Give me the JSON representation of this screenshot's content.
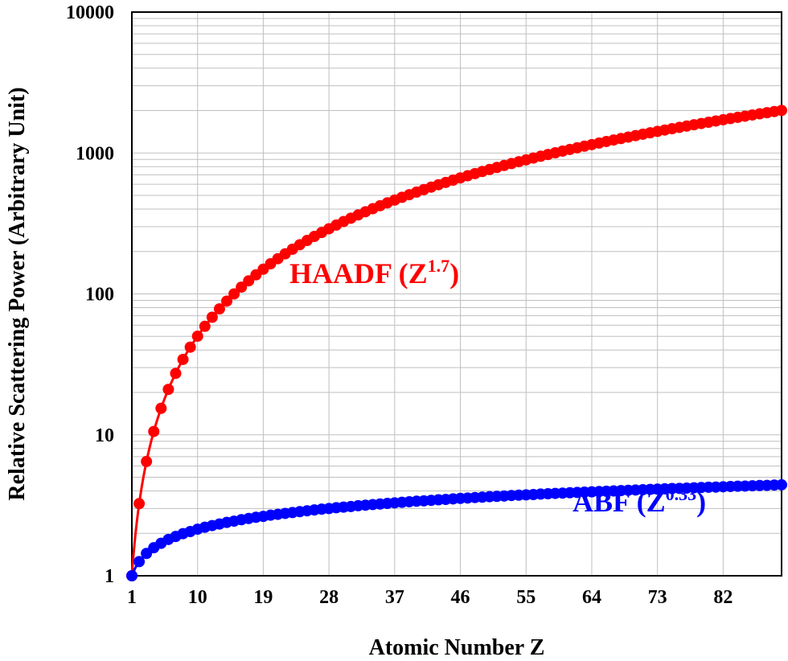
{
  "chart_data": {
    "type": "scatter",
    "xlabel": "Atomic Number Z",
    "ylabel": "Relative Scattering Power (Arbitrary Unit)",
    "yscale": "log",
    "xlim": [
      1,
      90
    ],
    "ylim": [
      1,
      10000
    ],
    "x_ticks": [
      1,
      10,
      19,
      28,
      37,
      46,
      55,
      64,
      73,
      82
    ],
    "y_ticks": [
      1,
      10,
      100,
      1000,
      10000
    ],
    "grid": true,
    "x": [
      1,
      2,
      3,
      4,
      5,
      6,
      7,
      8,
      9,
      10,
      11,
      12,
      13,
      14,
      15,
      16,
      17,
      18,
      19,
      20,
      21,
      22,
      23,
      24,
      25,
      26,
      27,
      28,
      29,
      30,
      31,
      32,
      33,
      34,
      35,
      36,
      37,
      38,
      39,
      40,
      41,
      42,
      43,
      44,
      45,
      46,
      47,
      48,
      49,
      50,
      51,
      52,
      53,
      54,
      55,
      56,
      57,
      58,
      59,
      60,
      61,
      62,
      63,
      64,
      65,
      66,
      67,
      68,
      69,
      70,
      71,
      72,
      73,
      74,
      75,
      76,
      77,
      78,
      79,
      80,
      81,
      82,
      83,
      84,
      85,
      86,
      87,
      88,
      89,
      90
    ],
    "series": [
      {
        "name": "HAADF",
        "label_main": "HAADF (Z",
        "label_sup": "1.7",
        "label_end": ")",
        "color": "#ff0000",
        "exponent": 1.7,
        "values": [
          1,
          3.25,
          6.47,
          10.56,
          15.43,
          21.02,
          27.29,
          34.3,
          41.9,
          50.12,
          58.9,
          68.31,
          78.3,
          88.9,
          100.0,
          111.7,
          123.9,
          136.6,
          149.8,
          163.6,
          177.8,
          192.5,
          207.7,
          223.3,
          239.4,
          255.9,
          272.8,
          290.1,
          307.8,
          326.0,
          344.5,
          363.4,
          382.7,
          402.3,
          422.4,
          442.8,
          463.5,
          484.6,
          506.1,
          527.9,
          550.0,
          572.5,
          595.3,
          618.4,
          641.9,
          665.7,
          689.8,
          714.2,
          739.0,
          764.0,
          789.4,
          815.1,
          841.1,
          867.4,
          894.0,
          920.9,
          948.1,
          975.6,
          1003.4,
          1031.5,
          1059.9,
          1088.5,
          1117.5,
          1146.8,
          1176.3,
          1206.1,
          1236.2,
          1266.6,
          1297.3,
          1328.3,
          1359.5,
          1391.0,
          1422.8,
          1454.8,
          1487.2,
          1519.8,
          1552.7,
          1585.8,
          1619.3,
          1653.0,
          1687.0,
          1721.2,
          1755.7,
          1790.5,
          1825.5,
          1860.8,
          1896.4,
          1932.2,
          1968.3,
          2004.6
        ]
      },
      {
        "name": "ABF",
        "label_main": "ABF (Z",
        "label_sup": "0.33",
        "label_end": ")",
        "color": "#0000ff",
        "exponent": 0.33,
        "values": [
          1,
          1.26,
          1.44,
          1.58,
          1.7,
          1.81,
          1.9,
          1.99,
          2.06,
          2.14,
          2.21,
          2.27,
          2.33,
          2.39,
          2.44,
          2.5,
          2.55,
          2.6,
          2.64,
          2.69,
          2.73,
          2.77,
          2.81,
          2.85,
          2.89,
          2.93,
          2.97,
          3.0,
          3.04,
          3.07,
          3.1,
          3.14,
          3.17,
          3.2,
          3.23,
          3.26,
          3.29,
          3.32,
          3.35,
          3.38,
          3.4,
          3.43,
          3.46,
          3.48,
          3.51,
          3.54,
          3.56,
          3.59,
          3.61,
          3.64,
          3.66,
          3.68,
          3.71,
          3.73,
          3.75,
          3.77,
          3.8,
          3.82,
          3.84,
          3.86,
          3.88,
          3.9,
          3.92,
          3.94,
          3.96,
          3.98,
          4.0,
          4.02,
          4.04,
          4.06,
          4.08,
          4.1,
          4.12,
          4.14,
          4.16,
          4.17,
          4.19,
          4.21,
          4.23,
          4.25,
          4.26,
          4.28,
          4.3,
          4.32,
          4.33,
          4.35,
          4.37,
          4.38,
          4.4,
          4.42
        ]
      }
    ]
  }
}
